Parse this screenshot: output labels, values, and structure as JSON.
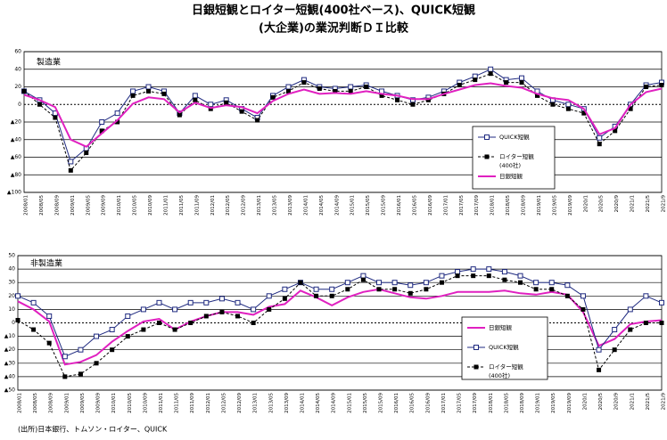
{
  "title": "日銀短観とロイター短観(400社ベース)、QUICK短観",
  "subtitle": "(大企業)の業況判断ＤＩ比較",
  "source": "(出所)日本銀行、トムソン・ロイター、QUICK",
  "chart_data": [
    {
      "type": "line",
      "title": "製造業",
      "categories": [
        "2008/01",
        "2008/05",
        "2008/09",
        "2009/01",
        "2009/05",
        "2009/09",
        "2010/01",
        "2010/05",
        "2010/09",
        "2011/01",
        "2011/05",
        "2011/09",
        "2012/01",
        "2012/05",
        "2012/09",
        "2013/01",
        "2013/05",
        "2013/09",
        "2014/01",
        "2014/05",
        "2014/09",
        "2015/01",
        "2015/05",
        "2015/09",
        "2016/01",
        "2016/05",
        "2016/09",
        "2017/01",
        "2017/05",
        "2017/09",
        "2018/01",
        "2018/05",
        "2018/09",
        "2019/01",
        "2019/05",
        "2019/09",
        "2020/1",
        "2020/5",
        "2020/9",
        "2021/1",
        "2021/5",
        "2021/9"
      ],
      "ylim": [
        -100,
        60
      ],
      "yticks": [
        {
          "value": -100,
          "label": "▲100"
        },
        {
          "value": -80,
          "label": "▲80"
        },
        {
          "value": -60,
          "label": "▲60"
        },
        {
          "value": -40,
          "label": "▲40"
        },
        {
          "value": -20,
          "label": "▲20"
        },
        0,
        20,
        40,
        60
      ],
      "grid": true,
      "series": [
        {
          "name": "QUICK短観",
          "color": "#1f2a80",
          "style": "open-square",
          "values": [
            15,
            5,
            -10,
            -65,
            -50,
            -20,
            -10,
            15,
            20,
            15,
            -10,
            10,
            0,
            5,
            -5,
            -15,
            10,
            20,
            28,
            20,
            18,
            20,
            22,
            15,
            10,
            5,
            8,
            15,
            25,
            32,
            40,
            28,
            30,
            15,
            5,
            0,
            -5,
            -38,
            -25,
            0,
            22,
            25
          ]
        },
        {
          "name": "ロイター短観",
          "note": "(400社)",
          "color": "#000000",
          "style": "dashed-square",
          "values": [
            15,
            0,
            -15,
            -75,
            -55,
            -30,
            -20,
            10,
            15,
            12,
            -12,
            5,
            -5,
            2,
            -8,
            -18,
            8,
            15,
            25,
            18,
            15,
            15,
            20,
            10,
            5,
            0,
            5,
            12,
            22,
            28,
            35,
            25,
            25,
            10,
            0,
            -5,
            -10,
            -45,
            -30,
            -5,
            20,
            22
          ]
        },
        {
          "name": "日銀短観",
          "color": "#e020c0",
          "style": "thick",
          "values": [
            11,
            5,
            -3,
            -40,
            -48,
            -33,
            -18,
            1,
            8,
            6,
            -9,
            2,
            -4,
            -1,
            -3,
            -10,
            4,
            12,
            17,
            12,
            13,
            12,
            15,
            12,
            10,
            6,
            6,
            12,
            17,
            22,
            24,
            21,
            19,
            12,
            7,
            5,
            -5,
            -34,
            -27,
            0,
            14,
            18
          ]
        }
      ]
    },
    {
      "type": "line",
      "title": "非製造業",
      "categories": [
        "2008/01",
        "2008/05",
        "2008/09",
        "2009/01",
        "2009/05",
        "2009/09",
        "2010/01",
        "2010/05",
        "2010/09",
        "2011/01",
        "2011/05",
        "2011/09",
        "2012/01",
        "2012/05",
        "2012/09",
        "2013/01",
        "2013/05",
        "2013/09",
        "2014/01",
        "2014/05",
        "2014/09",
        "2015/01",
        "2015/05",
        "2015/09",
        "2016/01",
        "2016/05",
        "2016/09",
        "2017/01",
        "2017/05",
        "2017/09",
        "2018/01",
        "2018/05",
        "2018/09",
        "2019/01",
        "2019/05",
        "2019/09",
        "2020/1",
        "2020/5",
        "2020/9",
        "2021/1",
        "2021/5",
        "2021/9"
      ],
      "ylim": [
        -50,
        50
      ],
      "yticks": [
        {
          "value": -50,
          "label": "▲50"
        },
        {
          "value": -40,
          "label": "▲40"
        },
        {
          "value": -30,
          "label": "▲30"
        },
        {
          "value": -20,
          "label": "▲20"
        },
        {
          "value": -10,
          "label": "▲10"
        },
        0,
        10,
        20,
        30,
        40,
        50
      ],
      "grid": true,
      "series": [
        {
          "name": "日銀短観",
          "color": "#e020c0",
          "style": "thick",
          "values": [
            16,
            10,
            1,
            -31,
            -29,
            -24,
            -14,
            -6,
            1,
            3,
            -5,
            1,
            5,
            8,
            8,
            6,
            12,
            14,
            24,
            19,
            13,
            19,
            23,
            25,
            22,
            19,
            18,
            20,
            23,
            23,
            23,
            24,
            22,
            21,
            23,
            21,
            8,
            -17,
            -12,
            -1,
            1,
            2
          ]
        },
        {
          "name": "QUICK短観",
          "color": "#1f2a80",
          "style": "open-square",
          "values": [
            20,
            15,
            5,
            -25,
            -20,
            -10,
            -5,
            5,
            10,
            15,
            10,
            15,
            15,
            18,
            15,
            10,
            20,
            25,
            30,
            25,
            25,
            30,
            35,
            30,
            30,
            28,
            30,
            35,
            38,
            40,
            40,
            38,
            35,
            30,
            30,
            28,
            20,
            -20,
            -5,
            10,
            20,
            15
          ]
        },
        {
          "name": "ロイター短観",
          "note": "(400社)",
          "color": "#000000",
          "style": "dashed-square",
          "values": [
            2,
            -5,
            -15,
            -40,
            -38,
            -30,
            -20,
            -10,
            -5,
            0,
            -5,
            0,
            5,
            8,
            5,
            0,
            10,
            18,
            30,
            20,
            20,
            25,
            32,
            25,
            25,
            22,
            25,
            30,
            35,
            35,
            35,
            32,
            30,
            25,
            25,
            20,
            10,
            -35,
            -20,
            -5,
            0,
            0
          ]
        }
      ]
    }
  ]
}
